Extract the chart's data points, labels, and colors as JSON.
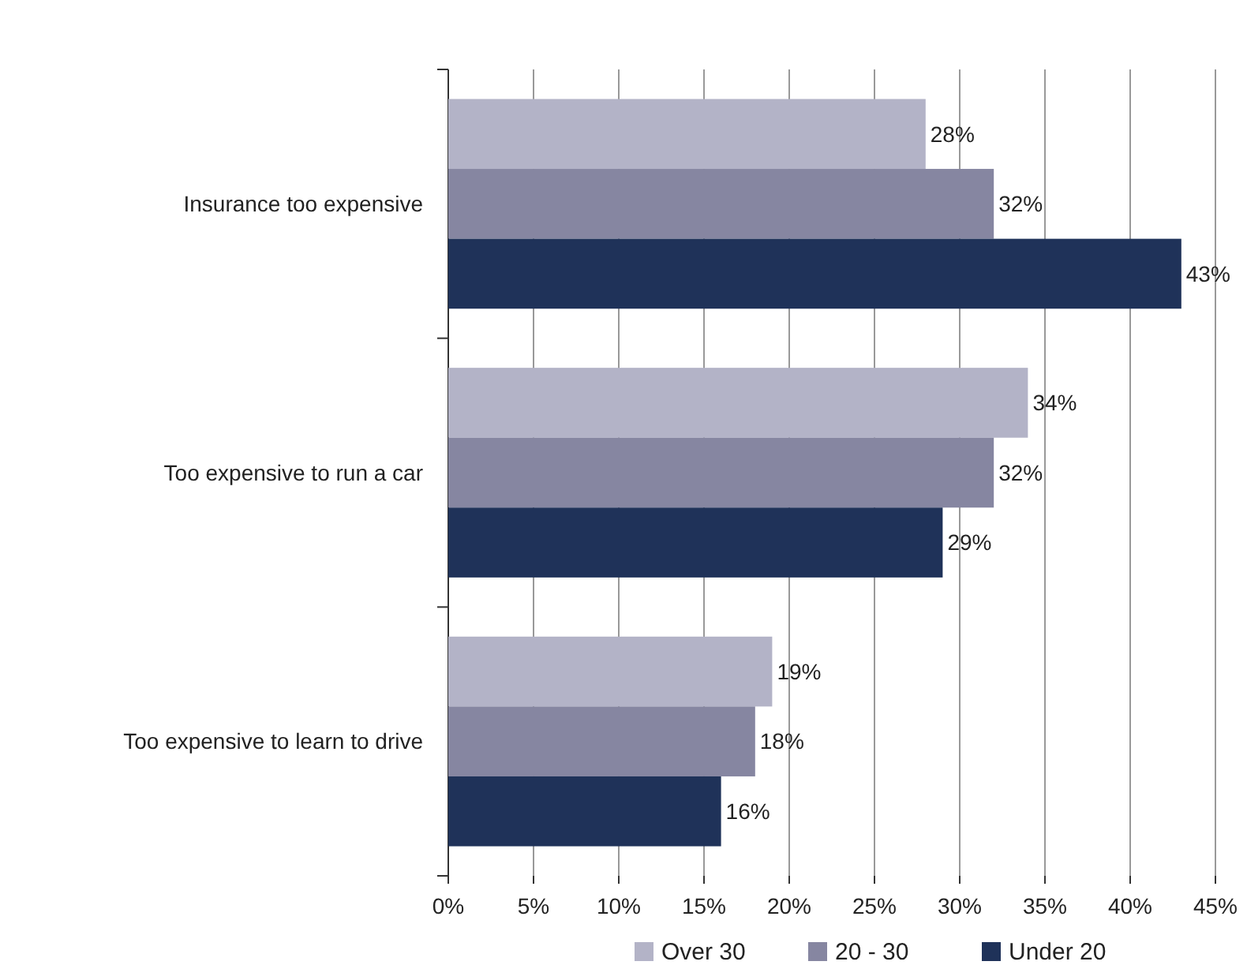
{
  "chart_data": {
    "type": "bar",
    "orientation": "horizontal",
    "categories": [
      "Insurance too expensive",
      "Too expensive to run a car",
      "Too expensive to learn to drive"
    ],
    "series": [
      {
        "name": "Over 30",
        "color": "#b3b3c7",
        "values": [
          28,
          34,
          19
        ]
      },
      {
        "name": "20 - 30",
        "color": "#8686a1",
        "values": [
          32,
          32,
          18
        ]
      },
      {
        "name": "Under 20",
        "color": "#1f3259",
        "values": [
          43,
          29,
          16
        ]
      }
    ],
    "xlim": [
      0,
      45
    ],
    "xticks": [
      {
        "value": 0,
        "label": "0%"
      },
      {
        "value": 5,
        "label": "5%"
      },
      {
        "value": 10,
        "label": "10%"
      },
      {
        "value": 15,
        "label": "15%"
      },
      {
        "value": 20,
        "label": "20%"
      },
      {
        "value": 25,
        "label": "25%"
      },
      {
        "value": 30,
        "label": "30%"
      },
      {
        "value": 35,
        "label": "35%"
      },
      {
        "value": 40,
        "label": "40%"
      },
      {
        "value": 45,
        "label": "45%"
      }
    ],
    "value_labels": [
      [
        "28%",
        "34%",
        "19%"
      ],
      [
        "32%",
        "32%",
        "18%"
      ],
      [
        "43%",
        "29%",
        "16%"
      ]
    ],
    "grid": "x",
    "legend": "bottom"
  }
}
